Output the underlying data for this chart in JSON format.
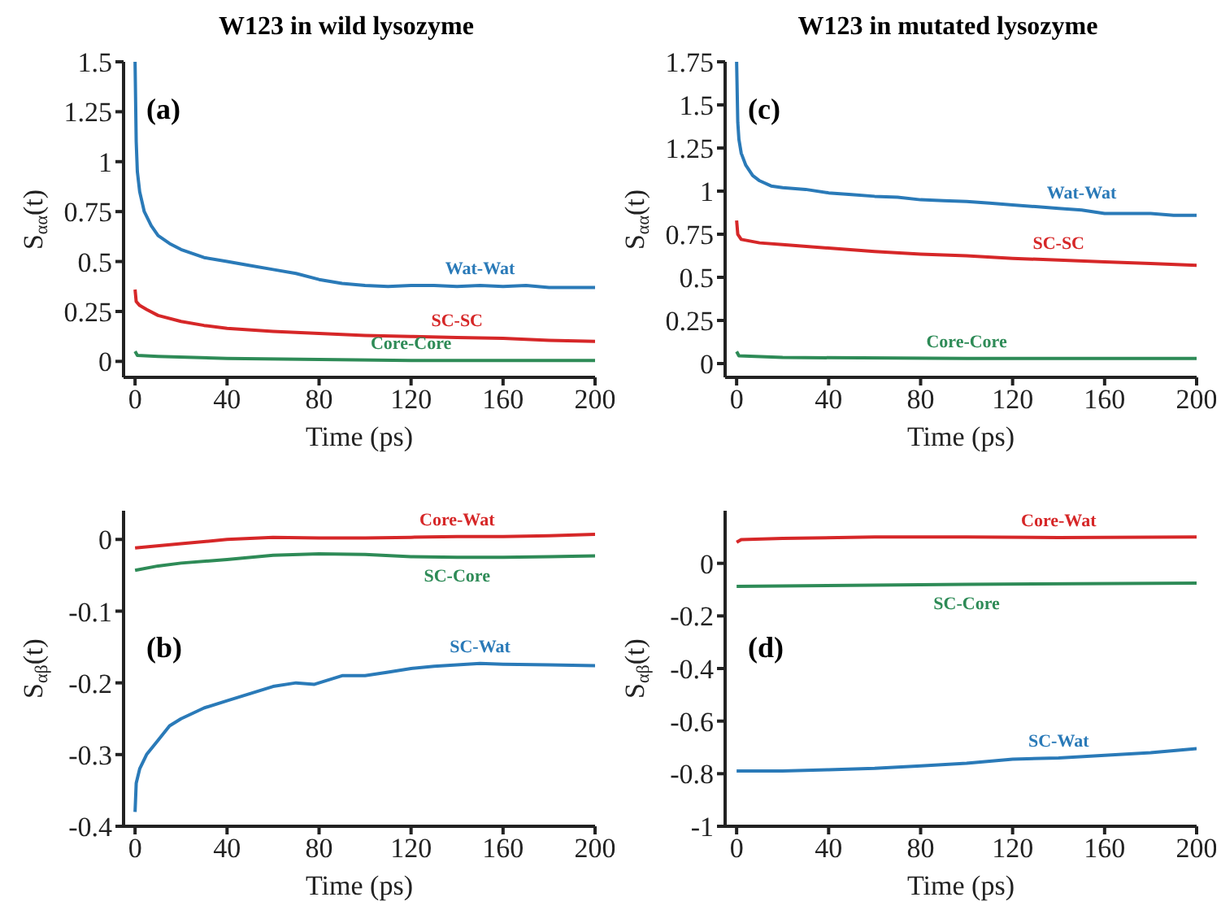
{
  "chart_data": [
    {
      "type": "line",
      "title": "W123 in wild lysozyme",
      "xlabel": "Time (ps)",
      "ylabel": "S$_{αα}$(t)",
      "annotations": [
        "(a)"
      ],
      "xlim": [
        -5,
        200
      ],
      "xticks": [
        0,
        40,
        80,
        120,
        160,
        200
      ],
      "ylim": [
        -0.08,
        1.5
      ],
      "yticks": [
        0,
        0.25,
        0.5,
        0.75,
        1,
        1.25,
        1.5
      ],
      "grid": false,
      "legend": false,
      "series": [
        {
          "name": "Wat-Wat",
          "color": "#2a7ab8",
          "x": [
            0,
            0.5,
            1,
            2,
            4,
            7,
            10,
            15,
            20,
            30,
            40,
            50,
            60,
            70,
            80,
            90,
            100,
            110,
            120,
            130,
            140,
            150,
            160,
            170,
            180,
            190,
            200
          ],
          "values": [
            1.5,
            1.1,
            0.95,
            0.85,
            0.75,
            0.68,
            0.63,
            0.59,
            0.56,
            0.52,
            0.5,
            0.48,
            0.46,
            0.44,
            0.41,
            0.39,
            0.38,
            0.375,
            0.38,
            0.38,
            0.375,
            0.38,
            0.375,
            0.38,
            0.37,
            0.37,
            0.37
          ]
        },
        {
          "name": "SC-SC",
          "color": "#d62728",
          "x": [
            0,
            0.5,
            2,
            5,
            10,
            20,
            30,
            40,
            60,
            80,
            100,
            120,
            140,
            160,
            180,
            200
          ],
          "values": [
            0.36,
            0.3,
            0.28,
            0.26,
            0.23,
            0.2,
            0.18,
            0.165,
            0.15,
            0.14,
            0.13,
            0.125,
            0.12,
            0.115,
            0.105,
            0.1
          ]
        },
        {
          "name": "Core-Core",
          "color": "#2e8b57",
          "x": [
            0,
            1,
            10,
            40,
            80,
            120,
            200
          ],
          "values": [
            0.05,
            0.03,
            0.025,
            0.015,
            0.01,
            0.005,
            0.005
          ]
        }
      ]
    },
    {
      "type": "line",
      "title": "W123 in mutated lysozyme",
      "xlabel": "Time (ps)",
      "ylabel": "S$_{αα}$(t)",
      "annotations": [
        "(c)"
      ],
      "xlim": [
        -5,
        200
      ],
      "xticks": [
        0,
        40,
        80,
        120,
        160,
        200
      ],
      "ylim": [
        -0.08,
        1.75
      ],
      "yticks": [
        0,
        0.25,
        0.5,
        0.75,
        1,
        1.25,
        1.5,
        1.75
      ],
      "grid": false,
      "legend": false,
      "series": [
        {
          "name": "Wat-Wat",
          "color": "#2a7ab8",
          "x": [
            0,
            0.5,
            1,
            2,
            4,
            7,
            10,
            15,
            20,
            30,
            40,
            50,
            60,
            70,
            80,
            90,
            100,
            110,
            120,
            130,
            140,
            150,
            160,
            170,
            180,
            190,
            200
          ],
          "values": [
            1.75,
            1.4,
            1.3,
            1.22,
            1.15,
            1.09,
            1.06,
            1.03,
            1.02,
            1.01,
            0.99,
            0.98,
            0.97,
            0.965,
            0.95,
            0.945,
            0.94,
            0.93,
            0.92,
            0.91,
            0.9,
            0.89,
            0.87,
            0.87,
            0.87,
            0.86,
            0.86
          ]
        },
        {
          "name": "SC-SC",
          "color": "#d62728",
          "x": [
            0,
            0.5,
            2,
            10,
            20,
            40,
            60,
            80,
            100,
            120,
            140,
            160,
            180,
            200
          ],
          "values": [
            0.83,
            0.75,
            0.72,
            0.7,
            0.69,
            0.67,
            0.65,
            0.635,
            0.625,
            0.61,
            0.6,
            0.59,
            0.58,
            0.57
          ]
        },
        {
          "name": "Core-Core",
          "color": "#2e8b57",
          "x": [
            0,
            1,
            20,
            100,
            200
          ],
          "values": [
            0.07,
            0.045,
            0.035,
            0.03,
            0.03
          ]
        }
      ]
    },
    {
      "type": "line",
      "xlabel": "Time (ps)",
      "ylabel": "S$_{αβ}$(t)",
      "annotations": [
        "(b)"
      ],
      "xlim": [
        -5,
        200
      ],
      "xticks": [
        0,
        40,
        80,
        120,
        160,
        200
      ],
      "ylim": [
        -0.4,
        0.04
      ],
      "yticks": [
        -0.4,
        -0.3,
        -0.2,
        -0.1,
        0
      ],
      "grid": false,
      "legend": false,
      "series": [
        {
          "name": "Core-Wat",
          "color": "#d62728",
          "x": [
            0,
            20,
            40,
            60,
            80,
            100,
            120,
            140,
            160,
            180,
            200
          ],
          "values": [
            -0.012,
            -0.006,
            0,
            0.003,
            0.002,
            0.002,
            0.003,
            0.004,
            0.004,
            0.005,
            0.007
          ]
        },
        {
          "name": "SC-Core",
          "color": "#2e8b57",
          "x": [
            0,
            10,
            20,
            40,
            60,
            80,
            100,
            120,
            140,
            160,
            180,
            200
          ],
          "values": [
            -0.043,
            -0.037,
            -0.033,
            -0.028,
            -0.022,
            -0.02,
            -0.021,
            -0.024,
            -0.025,
            -0.025,
            -0.024,
            -0.023
          ]
        },
        {
          "name": "SC-Wat",
          "color": "#2a7ab8",
          "x": [
            0,
            0.5,
            2,
            5,
            10,
            15,
            20,
            30,
            40,
            50,
            60,
            70,
            78,
            82,
            90,
            100,
            110,
            120,
            130,
            140,
            150,
            160,
            180,
            200
          ],
          "values": [
            -0.38,
            -0.34,
            -0.32,
            -0.3,
            -0.28,
            -0.26,
            -0.25,
            -0.235,
            -0.225,
            -0.215,
            -0.205,
            -0.2,
            -0.202,
            -0.198,
            -0.19,
            -0.19,
            -0.185,
            -0.18,
            -0.177,
            -0.175,
            -0.173,
            -0.174,
            -0.175,
            -0.176
          ]
        }
      ]
    },
    {
      "type": "line",
      "xlabel": "Time (ps)",
      "ylabel": "S$_{αβ}$(t)",
      "annotations": [
        "(d)"
      ],
      "xlim": [
        -5,
        200
      ],
      "xticks": [
        0,
        40,
        80,
        120,
        160,
        200
      ],
      "ylim": [
        -1,
        0.2
      ],
      "yticks": [
        -1,
        -0.8,
        -0.6,
        -0.4,
        -0.2,
        0
      ],
      "grid": false,
      "legend": false,
      "series": [
        {
          "name": "Core-Wat",
          "color": "#d62728",
          "x": [
            0,
            2,
            20,
            60,
            100,
            140,
            200
          ],
          "values": [
            0.08,
            0.09,
            0.095,
            0.1,
            0.1,
            0.098,
            0.1
          ]
        },
        {
          "name": "SC-Core",
          "color": "#2e8b57",
          "x": [
            0,
            100,
            200
          ],
          "values": [
            -0.088,
            -0.08,
            -0.075
          ]
        },
        {
          "name": "SC-Wat",
          "color": "#2a7ab8",
          "x": [
            0,
            20,
            40,
            60,
            80,
            100,
            120,
            140,
            160,
            180,
            200
          ],
          "values": [
            -0.79,
            -0.79,
            -0.785,
            -0.78,
            -0.77,
            -0.76,
            -0.745,
            -0.74,
            -0.73,
            -0.72,
            -0.705
          ]
        }
      ]
    }
  ]
}
